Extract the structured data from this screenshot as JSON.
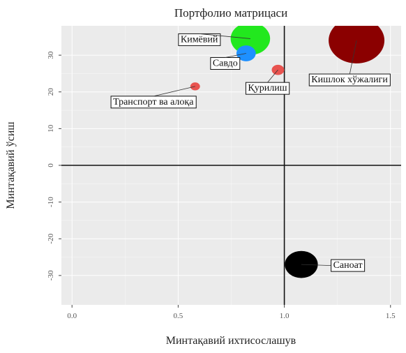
{
  "chart_data": {
    "type": "scatter",
    "title": "Портфолио матрицаси",
    "xlabel": "Минтақавий ихтисослашув",
    "ylabel": "Минтақавий ўсиш",
    "xlim": [
      -0.05,
      1.55
    ],
    "ylim": [
      -38,
      38
    ],
    "x_ticks": [
      0.0,
      0.5,
      1.0,
      1.5
    ],
    "x_tick_labels": [
      "0.0",
      "0.5",
      "1.0",
      "1.5"
    ],
    "y_ticks": [
      -30,
      -20,
      -10,
      0,
      10,
      20,
      30
    ],
    "y_tick_labels": [
      "-30",
      "-20",
      "-10",
      "0",
      "10",
      "20",
      "30"
    ],
    "reference_lines": {
      "x": 1.0,
      "y": 0
    },
    "grid": true,
    "legend": "none",
    "background": "#ebebeb",
    "points": [
      {
        "label": "Кишлок хўжалиги",
        "x": 1.34,
        "y": 34.0,
        "size": 1.0,
        "color": "#8b0000"
      },
      {
        "label": "Кимёвий",
        "x": 0.84,
        "y": 34.5,
        "size": 0.5,
        "color": "#22e81e"
      },
      {
        "label": "Савдо",
        "x": 0.82,
        "y": 30.5,
        "size": 0.12,
        "color": "#1e90ff"
      },
      {
        "label": "Қурилиш",
        "x": 0.97,
        "y": 26.0,
        "size": 0.05,
        "color": "#e8534f"
      },
      {
        "label": "Транспорт ва алоқа",
        "x": 0.58,
        "y": 21.5,
        "size": 0.03,
        "color": "#e8534f"
      },
      {
        "label": "Саноат",
        "x": 1.08,
        "y": -27.0,
        "size": 0.35,
        "color": "#000000"
      }
    ]
  }
}
